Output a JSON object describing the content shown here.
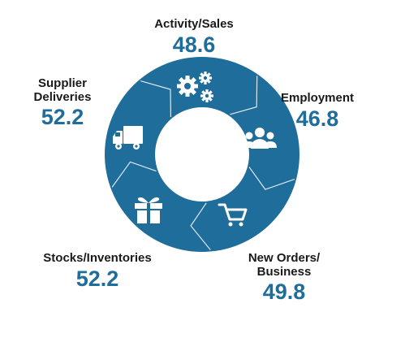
{
  "colors": {
    "ring": "#1f6d9a",
    "seam": "#dce8f0",
    "icon": "#ffffff",
    "value": "#1f6d9a",
    "label": "#1a1a1a"
  },
  "segments": [
    {
      "key": "activity",
      "name": "Activity/Sales",
      "value": "48.6",
      "icon": "gears-icon"
    },
    {
      "key": "employment",
      "name": "Employment",
      "value": "46.8",
      "icon": "people-icon"
    },
    {
      "key": "neworders",
      "name": "New Orders/\nBusiness",
      "value": "49.8",
      "icon": "cart-icon"
    },
    {
      "key": "stocks",
      "name": "Stocks/Inventories",
      "value": "52.2",
      "icon": "gift-icon"
    },
    {
      "key": "supplier",
      "name": "Supplier\nDeliveries",
      "value": "52.2",
      "icon": "truck-icon"
    }
  ]
}
